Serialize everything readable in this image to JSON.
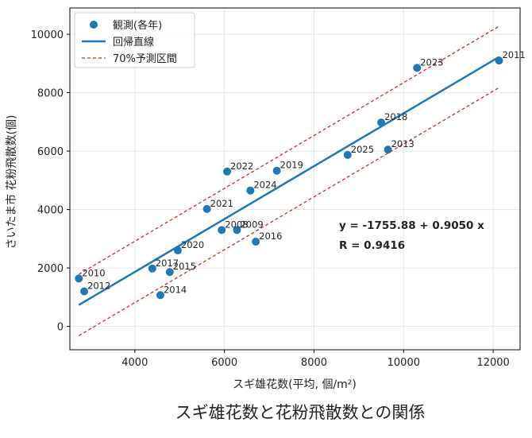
{
  "chart_data": {
    "type": "scatter",
    "title": "",
    "caption": "スギ雄花数と花粉飛散数との関係",
    "xlabel": "スギ雄花数(平均, 個/m²)",
    "ylabel": "さいたま市 花粉飛散数(個)",
    "xlim": [
      2550,
      12600
    ],
    "ylim": [
      -800,
      10900
    ],
    "xticks": [
      4000,
      6000,
      8000,
      10000,
      12000
    ],
    "yticks": [
      0,
      2000,
      4000,
      6000,
      8000,
      10000
    ],
    "grid": true,
    "legend_position": "top-left",
    "legend": {
      "observed": "観測(各年)",
      "fit": "回帰直線",
      "interval": "70%予測区間"
    },
    "colors": {
      "points": "#1f77b4",
      "fit": "#1f77b4",
      "interval": "#d62728"
    },
    "annotation": {
      "equation": "y = -1755.88 + 0.9050 x",
      "r": "R = 0.9416"
    },
    "regression": {
      "intercept": -1755.88,
      "slope": 0.905,
      "x_range": [
        2750,
        12130
      ],
      "interval_halfwidth": 1050
    },
    "points": [
      {
        "label": "2010",
        "x": 2750,
        "y": 1640
      },
      {
        "label": "2011",
        "x": 12130,
        "y": 9100
      },
      {
        "label": "2012",
        "x": 2870,
        "y": 1200
      },
      {
        "label": "2013",
        "x": 9650,
        "y": 6050
      },
      {
        "label": "2014",
        "x": 4570,
        "y": 1070
      },
      {
        "label": "2015",
        "x": 4780,
        "y": 1860
      },
      {
        "label": "2016",
        "x": 6700,
        "y": 2900
      },
      {
        "label": "2017",
        "x": 4390,
        "y": 1980
      },
      {
        "label": "2018",
        "x": 9500,
        "y": 6980
      },
      {
        "label": "2019",
        "x": 7170,
        "y": 5330
      },
      {
        "label": "2020",
        "x": 4960,
        "y": 2600
      },
      {
        "label": "2021",
        "x": 5610,
        "y": 4020
      },
      {
        "label": "2022",
        "x": 6060,
        "y": 5300
      },
      {
        "label": "2023",
        "x": 10300,
        "y": 8850
      },
      {
        "label": "2024",
        "x": 6580,
        "y": 4650
      },
      {
        "label": "2025",
        "x": 8750,
        "y": 5870
      },
      {
        "label": "2008",
        "x": 5940,
        "y": 3300
      },
      {
        "label": "2009",
        "x": 6280,
        "y": 3300
      }
    ]
  }
}
